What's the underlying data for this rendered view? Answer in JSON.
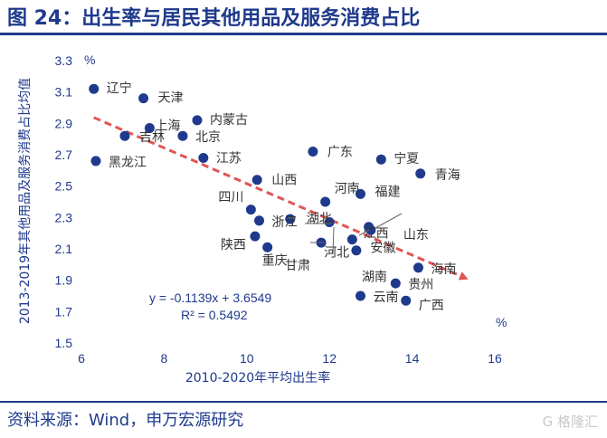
{
  "header": {
    "title": "图 24：出生率与居民其他用品及服务消费占比",
    "source": "资料来源：Wind，申万宏源研究",
    "watermark": "G 格隆汇"
  },
  "colors": {
    "accent": "#1f3a8c",
    "point": "#1f3a8c",
    "trend": "#e05555"
  },
  "chart_data": {
    "type": "scatter",
    "xlabel": "2010-2020年平均出生率",
    "ylabel": "2013-2019年其他用品及服务消费占比均值",
    "x_unit": "%",
    "y_unit": "%",
    "xlim": [
      6,
      16
    ],
    "ylim": [
      1.5,
      3.3
    ],
    "xticks": [
      6,
      8,
      10,
      12,
      14,
      16
    ],
    "yticks": [
      1.5,
      1.7,
      1.9,
      2.1,
      2.3,
      2.5,
      2.7,
      2.9,
      3.1,
      3.3
    ],
    "trendline": {
      "slope": -0.1139,
      "intercept": 3.6549,
      "x_range": [
        6.3,
        15.3
      ]
    },
    "equation": "y = -0.1139x + 3.6549",
    "r_squared": "R² = 0.5492",
    "points": [
      {
        "name": "辽宁",
        "x": 6.3,
        "y": 3.12
      },
      {
        "name": "天津",
        "x": 7.5,
        "y": 3.06
      },
      {
        "name": "内蒙古",
        "x": 8.8,
        "y": 2.92
      },
      {
        "name": "上海",
        "x": 7.65,
        "y": 2.87
      },
      {
        "name": "吉林",
        "x": 7.05,
        "y": 2.82
      },
      {
        "name": "北京",
        "x": 8.45,
        "y": 2.82
      },
      {
        "name": "黑龙江",
        "x": 6.35,
        "y": 2.66
      },
      {
        "name": "江苏",
        "x": 8.95,
        "y": 2.68
      },
      {
        "name": "广东",
        "x": 11.6,
        "y": 2.72
      },
      {
        "name": "宁夏",
        "x": 13.25,
        "y": 2.67
      },
      {
        "name": "青海",
        "x": 14.2,
        "y": 2.58
      },
      {
        "name": "山西",
        "x": 10.25,
        "y": 2.54
      },
      {
        "name": "福建",
        "x": 12.75,
        "y": 2.45
      },
      {
        "name": "河南",
        "x": 11.9,
        "y": 2.4
      },
      {
        "name": "四川",
        "x": 10.1,
        "y": 2.35
      },
      {
        "name": "江西",
        "x": 12.95,
        "y": 2.24
      },
      {
        "name": "山东",
        "x": 13.0,
        "y": 2.22
      },
      {
        "name": "浙江",
        "x": 10.3,
        "y": 2.28
      },
      {
        "name": "湖北",
        "x": 11.05,
        "y": 2.29
      },
      {
        "name": "安徽",
        "x": 12.55,
        "y": 2.16
      },
      {
        "name": "陕西",
        "x": 10.2,
        "y": 2.18
      },
      {
        "name": "重庆",
        "x": 10.5,
        "y": 2.11
      },
      {
        "name": "甘肃",
        "x": 11.8,
        "y": 2.14
      },
      {
        "name": "河北",
        "x": 12.0,
        "y": 2.27
      },
      {
        "name": "湖南",
        "x": 12.65,
        "y": 2.09
      },
      {
        "name": "海南",
        "x": 14.15,
        "y": 1.98
      },
      {
        "name": "贵州",
        "x": 13.6,
        "y": 1.88
      },
      {
        "name": "云南",
        "x": 12.75,
        "y": 1.8
      },
      {
        "name": "广西",
        "x": 13.85,
        "y": 1.77
      }
    ]
  }
}
